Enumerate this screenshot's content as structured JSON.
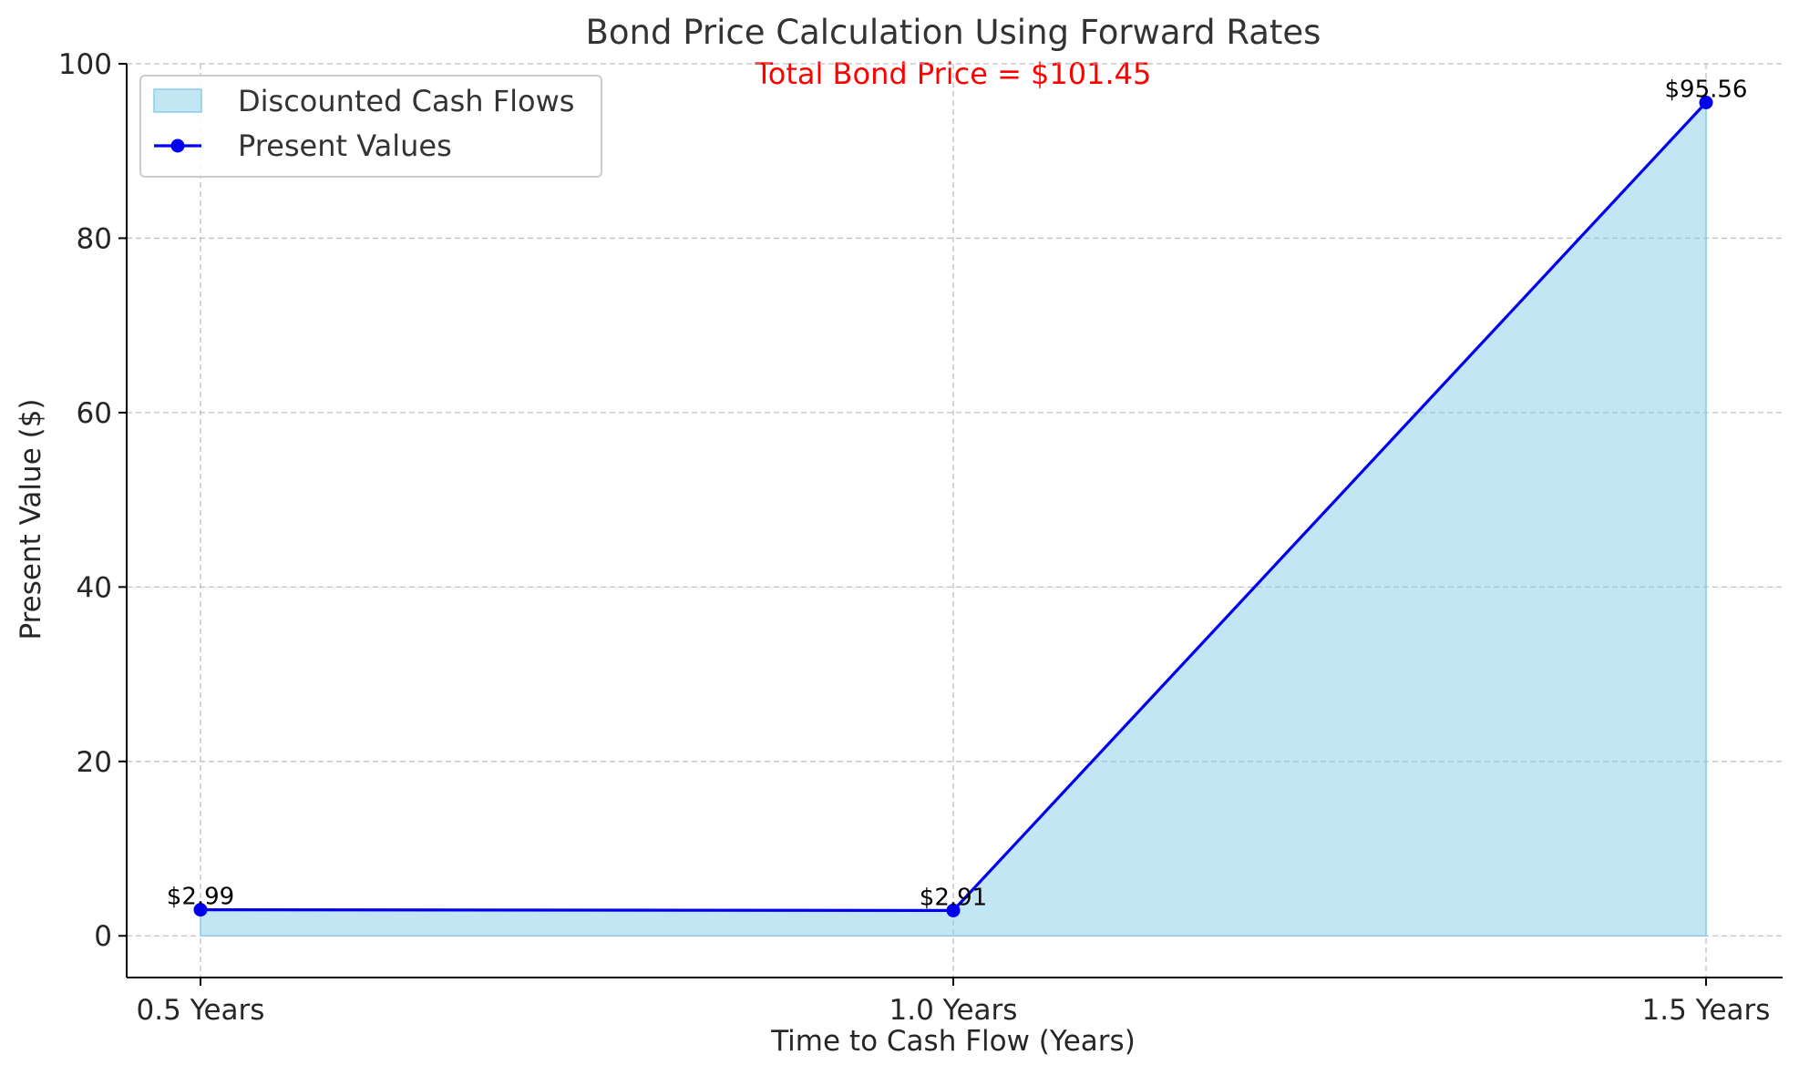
{
  "chart_data": {
    "type": "line",
    "title": "Bond Price Calculation Using Forward Rates",
    "annotation": "Total Bond Price = $101.45",
    "xlabel": "Time to Cash Flow (Years)",
    "ylabel": "Present Value ($)",
    "categories": [
      "0.5 Years",
      "1.0 Years",
      "1.5 Years"
    ],
    "series": [
      {
        "name": "Present Values",
        "values": [
          2.99,
          2.91,
          95.56
        ],
        "kind": "line-with-markers",
        "color": "#0000ee"
      },
      {
        "name": "Discounted Cash Flows",
        "values": [
          2.99,
          2.91,
          95.56
        ],
        "kind": "area",
        "color": "#87ceeb"
      }
    ],
    "data_labels": [
      "$2.99",
      "$2.91",
      "$95.56"
    ],
    "ylim": [
      -4.78,
      100
    ],
    "yticks": [
      0,
      20,
      40,
      60,
      80,
      100
    ],
    "grid": true,
    "legend": {
      "position": "top-left",
      "entries": [
        "Discounted Cash Flows",
        "Present Values"
      ]
    },
    "colors": {
      "title": "#333333",
      "annotation": "#ff0000",
      "line": "#0000ee",
      "area_fill": "#87ceeb",
      "grid": "#b0b0b0"
    }
  }
}
